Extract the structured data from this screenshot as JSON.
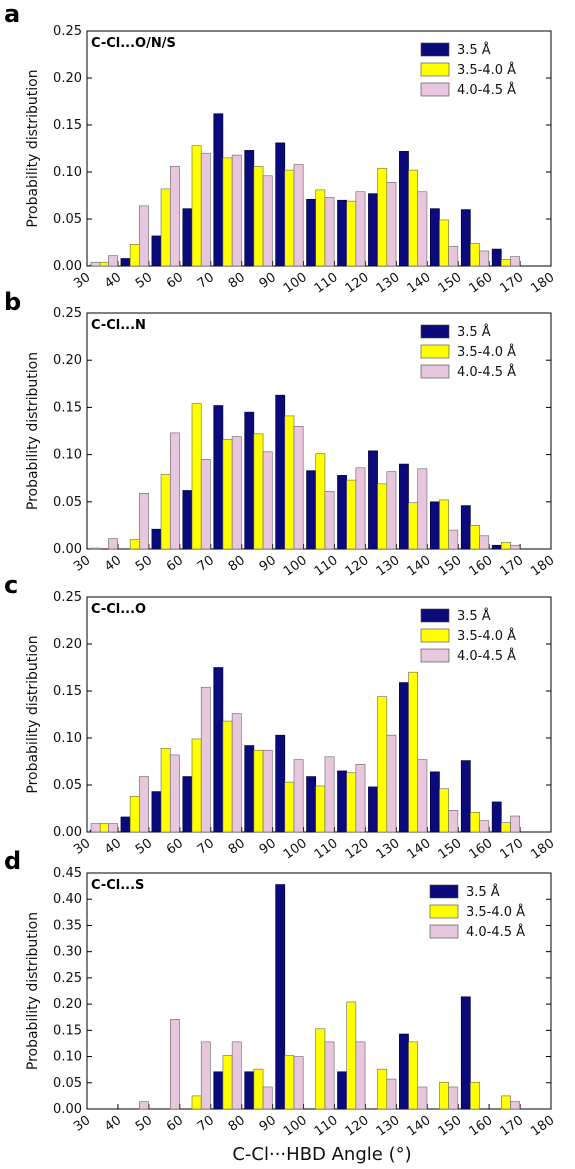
{
  "colors": {
    "s1": "#0a0a7a",
    "s2": "#ffff00",
    "s3": "#e8c6dd"
  },
  "legend_labels": [
    "3.5 Å",
    "3.5-4.0 Å",
    "4.0-4.5 Å"
  ],
  "x_label": "C-Cl···HBD Angle (°)",
  "chart_data": [
    {
      "type": "bar",
      "panel": "a",
      "title": "C-Cl...O/N/S",
      "ylabel": "Probability distribution",
      "ylim": [
        0,
        0.25
      ],
      "yticks": [
        "0.00",
        "0.05",
        "0.10",
        "0.15",
        "0.20",
        "0.25"
      ],
      "xticks": [
        "30",
        "40",
        "50",
        "60",
        "70",
        "80",
        "90",
        "100",
        "110",
        "120",
        "130",
        "140",
        "150",
        "160",
        "170",
        "180"
      ],
      "categories": [
        40,
        50,
        60,
        70,
        80,
        90,
        100,
        110,
        120,
        130,
        140,
        150,
        160,
        170,
        180
      ],
      "series": [
        {
          "name": "3.5 Å",
          "values": [
            0.001,
            0.008,
            0.032,
            0.061,
            0.162,
            0.123,
            0.131,
            0.071,
            0.07,
            0.077,
            0.122,
            0.061,
            0.06,
            0.018,
            0
          ]
        },
        {
          "name": "3.5-4.0 Å",
          "values": [
            0.004,
            0.023,
            0.082,
            0.128,
            0.115,
            0.106,
            0.102,
            0.081,
            0.069,
            0.104,
            0.102,
            0.049,
            0.024,
            0.007,
            0
          ]
        },
        {
          "name": "4.0-4.5 Å",
          "values": [
            0.011,
            0.064,
            0.106,
            0.12,
            0.118,
            0.096,
            0.108,
            0.073,
            0.079,
            0.089,
            0.079,
            0.021,
            0.016,
            0.01,
            0
          ]
        }
      ],
      "extra_bars": [
        {
          "x": 30,
          "series": 2,
          "value": 0.004
        }
      ]
    },
    {
      "type": "bar",
      "panel": "b",
      "title": "C-Cl...N",
      "ylabel": "Probability distribution",
      "ylim": [
        0,
        0.25
      ],
      "yticks": [
        "0.00",
        "0.05",
        "0.10",
        "0.15",
        "0.20",
        "0.25"
      ],
      "xticks": [
        "30",
        "40",
        "50",
        "60",
        "70",
        "80",
        "90",
        "100",
        "110",
        "120",
        "130",
        "140",
        "150",
        "160",
        "170",
        "180"
      ],
      "categories": [
        40,
        50,
        60,
        70,
        80,
        90,
        100,
        110,
        120,
        130,
        140,
        150,
        160,
        170,
        180
      ],
      "series": [
        {
          "name": "3.5 Å",
          "values": [
            0,
            0,
            0.021,
            0.062,
            0.152,
            0.145,
            0.163,
            0.083,
            0.078,
            0.104,
            0.09,
            0.05,
            0.046,
            0.004,
            0
          ]
        },
        {
          "name": "3.5-4.0 Å",
          "values": [
            0,
            0.01,
            0.079,
            0.154,
            0.116,
            0.122,
            0.141,
            0.101,
            0.073,
            0.069,
            0.049,
            0.052,
            0.025,
            0.007,
            0
          ]
        },
        {
          "name": "4.0-4.5 Å",
          "values": [
            0.011,
            0.059,
            0.123,
            0.095,
            0.119,
            0.103,
            0.13,
            0.061,
            0.086,
            0.082,
            0.085,
            0.02,
            0.014,
            0.004,
            0
          ]
        }
      ],
      "extra_bars": [
        {
          "x": 30,
          "series": 2,
          "value": 0.001
        }
      ]
    },
    {
      "type": "bar",
      "panel": "c",
      "title": "C-Cl...O",
      "ylabel": "Probability distribution",
      "ylim": [
        0,
        0.25
      ],
      "yticks": [
        "0.00",
        "0.05",
        "0.10",
        "0.15",
        "0.20",
        "0.25"
      ],
      "xticks": [
        "30",
        "40",
        "50",
        "60",
        "70",
        "80",
        "90",
        "100",
        "110",
        "120",
        "130",
        "140",
        "150",
        "160",
        "170",
        "180"
      ],
      "categories": [
        40,
        50,
        60,
        70,
        80,
        90,
        100,
        110,
        120,
        130,
        140,
        150,
        160,
        170,
        180
      ],
      "series": [
        {
          "name": "3.5 Å",
          "values": [
            0.002,
            0.016,
            0.043,
            0.059,
            0.175,
            0.092,
            0.103,
            0.059,
            0.065,
            0.048,
            0.159,
            0.064,
            0.076,
            0.032,
            0
          ]
        },
        {
          "name": "3.5-4.0 Å",
          "values": [
            0.009,
            0.038,
            0.089,
            0.099,
            0.118,
            0.087,
            0.053,
            0.049,
            0.063,
            0.144,
            0.17,
            0.046,
            0.021,
            0.01,
            0
          ]
        },
        {
          "name": "4.0-4.5 Å",
          "values": [
            0.009,
            0.059,
            0.082,
            0.154,
            0.126,
            0.087,
            0.077,
            0.08,
            0.072,
            0.103,
            0.077,
            0.023,
            0.012,
            0.017,
            0
          ]
        }
      ],
      "extra_bars": [
        {
          "x": 30,
          "series": 2,
          "value": 0.009
        }
      ]
    },
    {
      "type": "bar",
      "panel": "d",
      "title": "C-Cl...S",
      "ylabel": "Probability distribution",
      "ylim": [
        0,
        0.45
      ],
      "yticks": [
        "0.00",
        "0.05",
        "0.10",
        "0.15",
        "0.20",
        "0.25",
        "0.30",
        "0.35",
        "0.40",
        "0.45"
      ],
      "xticks": [
        "30",
        "40",
        "50",
        "60",
        "70",
        "80",
        "90",
        "100",
        "110",
        "120",
        "130",
        "140",
        "150",
        "160",
        "170",
        "180"
      ],
      "categories": [
        40,
        50,
        60,
        70,
        80,
        90,
        100,
        110,
        120,
        130,
        140,
        150,
        160,
        170,
        180
      ],
      "series": [
        {
          "name": "3.5 Å",
          "values": [
            0,
            0,
            0,
            0,
            0.071,
            0.071,
            0.428,
            0,
            0.071,
            0,
            0.143,
            0,
            0.214,
            0,
            0
          ]
        },
        {
          "name": "3.5-4.0 Å",
          "values": [
            0,
            0,
            0,
            0.025,
            0.102,
            0.076,
            0.102,
            0.153,
            0.204,
            0.076,
            0.128,
            0.051,
            0.051,
            0.025,
            0
          ]
        },
        {
          "name": "4.0-4.5 Å",
          "values": [
            0,
            0.014,
            0.171,
            0.128,
            0.128,
            0.042,
            0.1,
            0.128,
            0.128,
            0.057,
            0.042,
            0.042,
            0,
            0.014,
            0
          ]
        }
      ],
      "extra_bars": []
    }
  ]
}
